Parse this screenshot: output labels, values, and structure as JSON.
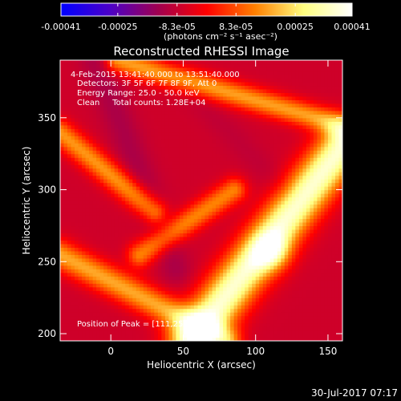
{
  "chart_data": {
    "type": "heatmap",
    "title": "Reconstructed RHESSI Image",
    "xlabel": "Heliocentric X (arcsec)",
    "ylabel": "Heliocentric Y (arcsec)",
    "xlim": [
      -35,
      160
    ],
    "ylim": [
      195,
      390
    ],
    "xticks": [
      0,
      50,
      100,
      150
    ],
    "yticks": [
      200,
      250,
      300,
      350
    ],
    "colorbar": {
      "min": -0.00041,
      "max": 0.00041,
      "tick_values": [
        -0.00041,
        -0.00025,
        -8.3e-05,
        8.3e-05,
        0.00025,
        0.00041
      ],
      "tick_labels": [
        "-0.00041",
        "-0.00025",
        "-8.3e-05",
        "8.3e-05",
        "0.00025",
        "0.00041"
      ],
      "unit_label": "(photons cm⁻² s⁻¹ asec⁻²)",
      "colors": [
        "#0000ff",
        "#4b00c8",
        "#a00050",
        "#ff0000",
        "#ff8000",
        "#ffff80",
        "#ffffff"
      ]
    },
    "annotations": [
      "4-Feb-2015 13:41:40.000 to 13:51:40.000",
      "Detectors: 3F 5F 6F 7F 8F 9F, Att 0",
      "Energy Range: 25.0 - 50.0 keV",
      "Clean     Total counts: 1.28E+04",
      "Position of Peak = [111,257]"
    ],
    "peak": {
      "x": 111,
      "y": 257
    },
    "bands": [
      {
        "kind": "bright",
        "x1": 55,
        "y1": 195,
        "x2": 160,
        "y2": 330,
        "width": 22,
        "value": 0.00036
      },
      {
        "kind": "moderate",
        "x1": -35,
        "y1": 255,
        "x2": 80,
        "y2": 195,
        "width": 14,
        "value": 0.00018
      },
      {
        "kind": "moderate",
        "x1": 5,
        "y1": 390,
        "x2": 160,
        "y2": 345,
        "width": 12,
        "value": 0.00017
      },
      {
        "kind": "moderate",
        "x1": -35,
        "y1": 340,
        "x2": 30,
        "y2": 285,
        "width": 12,
        "value": 0.00016
      },
      {
        "kind": "moderate",
        "x1": 20,
        "y1": 255,
        "x2": 85,
        "y2": 300,
        "width": 12,
        "value": 0.00014
      },
      {
        "kind": "dark",
        "x1": -10,
        "y1": 390,
        "x2": 45,
        "y2": 245,
        "width": 16,
        "value": -0.00012
      },
      {
        "kind": "dark",
        "x1": 40,
        "y1": 385,
        "x2": 120,
        "y2": 300,
        "width": 14,
        "value": -9e-05
      }
    ]
  },
  "footer": {
    "date": "30-Jul-2017 07:17"
  }
}
